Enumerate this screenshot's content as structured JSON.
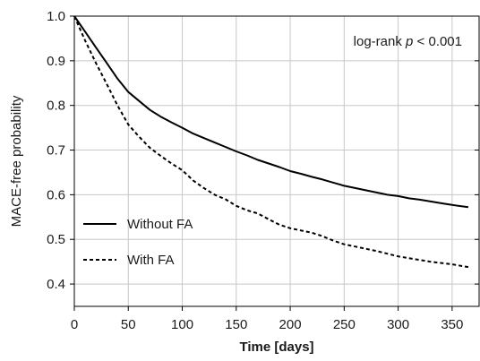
{
  "chart_data": {
    "type": "line",
    "title": "",
    "xlabel": "Time [days]",
    "ylabel": "MACE-free probability",
    "xlim": [
      0,
      375
    ],
    "ylim": [
      0.35,
      1.0
    ],
    "x_ticks": [
      0,
      50,
      100,
      150,
      200,
      250,
      300,
      350
    ],
    "y_ticks": [
      0.4,
      0.5,
      0.6,
      0.7,
      0.8,
      0.9,
      1.0
    ],
    "x_tick_labels": [
      "0",
      "50",
      "100",
      "150",
      "200",
      "250",
      "300",
      "350"
    ],
    "y_tick_labels": [
      "0.4",
      "0.5",
      "0.6",
      "0.7",
      "0.8",
      "0.9",
      "1.0"
    ],
    "grid": true,
    "legend_position": "bottom-left",
    "annotation": {
      "text_before": "log-rank ",
      "text_italic": "p",
      "text_after": " < 0.001"
    },
    "series": [
      {
        "name": "Without FA",
        "line_style": "solid",
        "color": "#000000",
        "x": [
          0,
          10,
          20,
          30,
          40,
          50,
          60,
          70,
          80,
          90,
          100,
          110,
          120,
          130,
          140,
          150,
          160,
          170,
          180,
          190,
          200,
          210,
          220,
          230,
          240,
          250,
          260,
          270,
          280,
          290,
          300,
          310,
          320,
          330,
          340,
          350,
          365
        ],
        "y": [
          1.0,
          0.965,
          0.93,
          0.895,
          0.86,
          0.83,
          0.81,
          0.79,
          0.775,
          0.762,
          0.75,
          0.737,
          0.727,
          0.717,
          0.707,
          0.697,
          0.688,
          0.678,
          0.67,
          0.662,
          0.653,
          0.647,
          0.64,
          0.634,
          0.627,
          0.62,
          0.615,
          0.61,
          0.605,
          0.6,
          0.597,
          0.592,
          0.589,
          0.585,
          0.581,
          0.577,
          0.572
        ]
      },
      {
        "name": "With FA",
        "line_style": "dashed",
        "color": "#000000",
        "x": [
          0,
          10,
          20,
          30,
          40,
          50,
          60,
          70,
          80,
          90,
          100,
          110,
          120,
          130,
          140,
          150,
          160,
          170,
          180,
          190,
          200,
          210,
          220,
          230,
          240,
          250,
          260,
          270,
          280,
          290,
          300,
          310,
          320,
          330,
          340,
          350,
          365
        ],
        "y": [
          1.0,
          0.945,
          0.895,
          0.848,
          0.8,
          0.757,
          0.73,
          0.705,
          0.687,
          0.67,
          0.655,
          0.632,
          0.615,
          0.6,
          0.59,
          0.575,
          0.565,
          0.558,
          0.545,
          0.533,
          0.525,
          0.52,
          0.515,
          0.507,
          0.497,
          0.489,
          0.484,
          0.479,
          0.474,
          0.468,
          0.462,
          0.458,
          0.454,
          0.45,
          0.447,
          0.444,
          0.438
        ]
      }
    ]
  }
}
